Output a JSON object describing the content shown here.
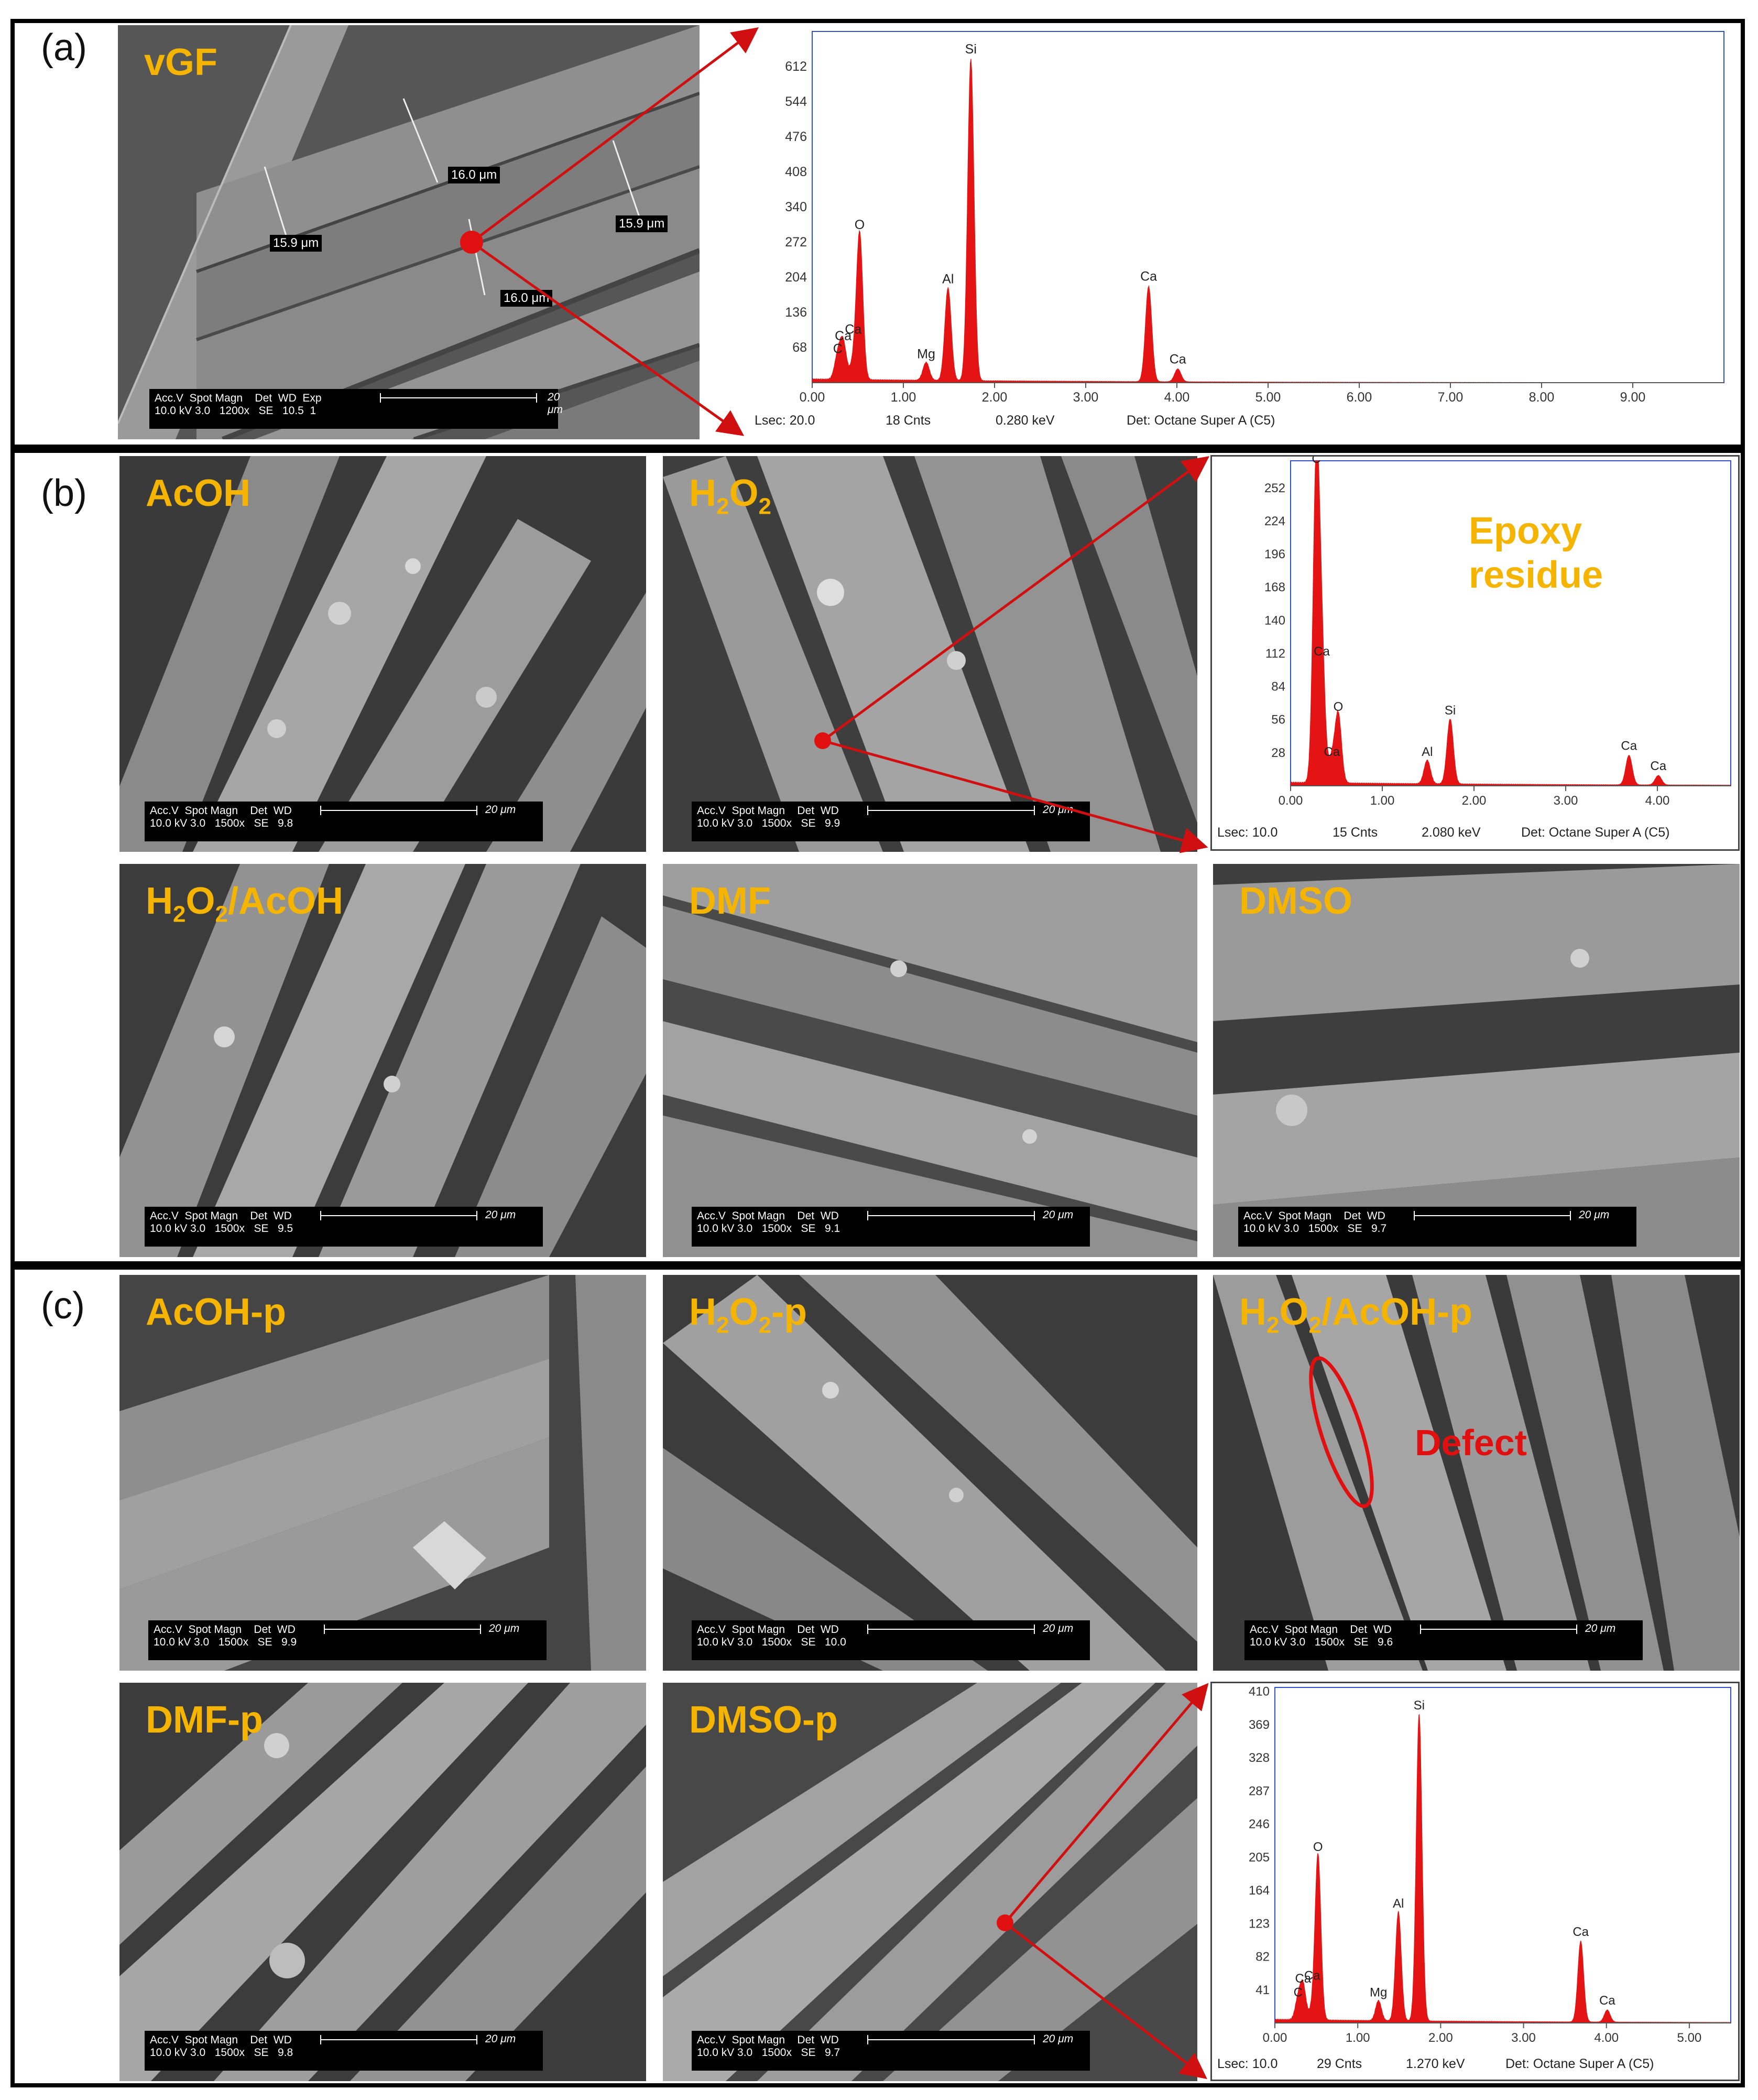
{
  "panels": {
    "a": "(a)",
    "b": "(b)",
    "c": "(c)"
  },
  "sem": {
    "vgf": {
      "title": "vGF",
      "bar_row1": "Acc.V  Spot Magn    Det  WD  Exp",
      "bar_row2": "10.0 kV 3.0   1200x   SE   10.5  1",
      "scale": "20 μm",
      "measures": [
        "16.0 μm",
        "15.9 μm",
        "15.9 μm",
        "16.0 μm"
      ]
    },
    "acoh": {
      "title": "AcOH",
      "bar_row1": "Acc.V  Spot Magn    Det  WD",
      "bar_row2": "10.0 kV 3.0   1500x   SE   9.8",
      "scale": "20 μm"
    },
    "h2o2": {
      "title_main": "H",
      "title_sub1": "2",
      "title_mid": "O",
      "title_sub2": "2",
      "title_end": "",
      "bar_row1": "Acc.V  Spot Magn    Det  WD",
      "bar_row2": "10.0 kV 3.0   1500x   SE   9.9",
      "scale": "20 μm"
    },
    "h2o2_acoh": {
      "title_main": "H",
      "title_sub1": "2",
      "title_mid": "O",
      "title_sub2": "2",
      "title_end": "/AcOH",
      "bar_row1": "Acc.V  Spot Magn    Det  WD",
      "bar_row2": "10.0 kV 3.0   1500x   SE   9.5",
      "scale": "20 μm"
    },
    "dmf": {
      "title": "DMF",
      "bar_row1": "Acc.V  Spot Magn    Det  WD",
      "bar_row2": "10.0 kV 3.0   1500x   SE   9.1",
      "scale": "20 μm"
    },
    "dmso": {
      "title": "DMSO",
      "bar_row1": "Acc.V  Spot Magn    Det  WD",
      "bar_row2": "10.0 kV 3.0   1500x   SE   9.7",
      "scale": "20 μm"
    },
    "acoh_p": {
      "title": "AcOH-p",
      "bar_row1": "Acc.V  Spot Magn    Det  WD",
      "bar_row2": "10.0 kV 3.0   1500x   SE   9.9",
      "scale": "20 μm"
    },
    "h2o2_p": {
      "title_main": "H",
      "title_sub1": "2",
      "title_mid": "O",
      "title_sub2": "2",
      "title_end": "-p",
      "bar_row1": "Acc.V  Spot Magn    Det  WD",
      "bar_row2": "10.0 kV 3.0   1500x   SE   10.0",
      "scale": "20 μm"
    },
    "h2o2_acoh_p": {
      "title_main": "H",
      "title_sub1": "2",
      "title_mid": "O",
      "title_sub2": "2",
      "title_end": "/AcOH-p",
      "bar_row1": "Acc.V  Spot Magn    Det  WD",
      "bar_row2": "10.0 kV 3.0   1500x   SE   9.6",
      "scale": "20 μm",
      "defect": "Defect"
    },
    "dmf_p": {
      "title": "DMF-p",
      "bar_row1": "Acc.V  Spot Magn    Det  WD",
      "bar_row2": "10.0 kV 3.0   1500x   SE   9.8",
      "scale": "20 μm"
    },
    "dmso_p": {
      "title": "DMSO-p",
      "bar_row1": "Acc.V  Spot Magn    Det  WD",
      "bar_row2": "10.0 kV 3.0   1500x   SE   9.7",
      "scale": "20 μm"
    }
  },
  "eds": {
    "a": {
      "lsec": "Lsec: 20.0",
      "cnts": "18 Cnts",
      "kev": "0.280 keV",
      "det": "Det: Octane Super A (C5)"
    },
    "b": {
      "lsec": "Lsec: 10.0",
      "cnts": "15 Cnts",
      "kev": "2.080 keV",
      "det": "Det: Octane Super A (C5)",
      "note_line1": "Epoxy",
      "note_line2": "residue"
    },
    "c": {
      "lsec": "Lsec: 10.0",
      "cnts": "29 Cnts",
      "kev": "1.270 keV",
      "det": "Det: Octane Super A (C5)"
    }
  },
  "chart_data": [
    {
      "type": "area",
      "xlim": [
        0,
        10
      ],
      "ylim": [
        0,
        680
      ],
      "x_ticks": [
        "0.00",
        "1.00",
        "2.00",
        "3.00",
        "4.00",
        "5.00",
        "6.00",
        "7.00",
        "8.00",
        "9.00"
      ],
      "y_ticks": [
        "68",
        "136",
        "204",
        "272",
        "340",
        "408",
        "476",
        "544",
        "612"
      ],
      "peaks": [
        {
          "label": "C",
          "x": 0.28,
          "y": 45
        },
        {
          "label": "Ca",
          "x": 0.34,
          "y": 70
        },
        {
          "label": "O",
          "x": 0.52,
          "y": 285
        },
        {
          "label": "Ca",
          "x": 0.45,
          "y": 30
        },
        {
          "label": "Mg",
          "x": 1.25,
          "y": 35
        },
        {
          "label": "Al",
          "x": 1.49,
          "y": 180
        },
        {
          "label": "Si",
          "x": 1.74,
          "y": 625
        },
        {
          "label": "Ca",
          "x": 3.69,
          "y": 185
        },
        {
          "label": "Ca",
          "x": 4.01,
          "y": 25
        }
      ]
    },
    {
      "type": "area",
      "xlim": [
        0,
        4.8
      ],
      "ylim": [
        0,
        275
      ],
      "x_ticks": [
        "0.00",
        "1.00",
        "2.00",
        "3.00",
        "4.00"
      ],
      "y_ticks": [
        "28",
        "56",
        "84",
        "112",
        "140",
        "168",
        "196",
        "224",
        "252"
      ],
      "peaks": [
        {
          "label": "C",
          "x": 0.28,
          "y": 268
        },
        {
          "label": "Ca",
          "x": 0.34,
          "y": 105
        },
        {
          "label": "Ca",
          "x": 0.45,
          "y": 20
        },
        {
          "label": "O",
          "x": 0.52,
          "y": 58
        },
        {
          "label": "Al",
          "x": 1.49,
          "y": 20
        },
        {
          "label": "Si",
          "x": 1.74,
          "y": 55
        },
        {
          "label": "Ca",
          "x": 3.69,
          "y": 25
        },
        {
          "label": "Ca",
          "x": 4.01,
          "y": 8
        }
      ]
    },
    {
      "type": "area",
      "xlim": [
        0,
        5.5
      ],
      "ylim": [
        0,
        415
      ],
      "x_ticks": [
        "0.00",
        "1.00",
        "2.00",
        "3.00",
        "4.00",
        "5.00"
      ],
      "y_ticks": [
        "41",
        "82",
        "123",
        "164",
        "205",
        "246",
        "287",
        "328",
        "369",
        "410"
      ],
      "peaks": [
        {
          "label": "C",
          "x": 0.28,
          "y": 25
        },
        {
          "label": "Ca",
          "x": 0.34,
          "y": 42
        },
        {
          "label": "Ca",
          "x": 0.45,
          "y": 12
        },
        {
          "label": "O",
          "x": 0.52,
          "y": 205
        },
        {
          "label": "Mg",
          "x": 1.25,
          "y": 25
        },
        {
          "label": "Al",
          "x": 1.49,
          "y": 135
        },
        {
          "label": "Si",
          "x": 1.74,
          "y": 380
        },
        {
          "label": "Ca",
          "x": 3.69,
          "y": 100
        },
        {
          "label": "Ca",
          "x": 4.01,
          "y": 15
        }
      ]
    }
  ]
}
